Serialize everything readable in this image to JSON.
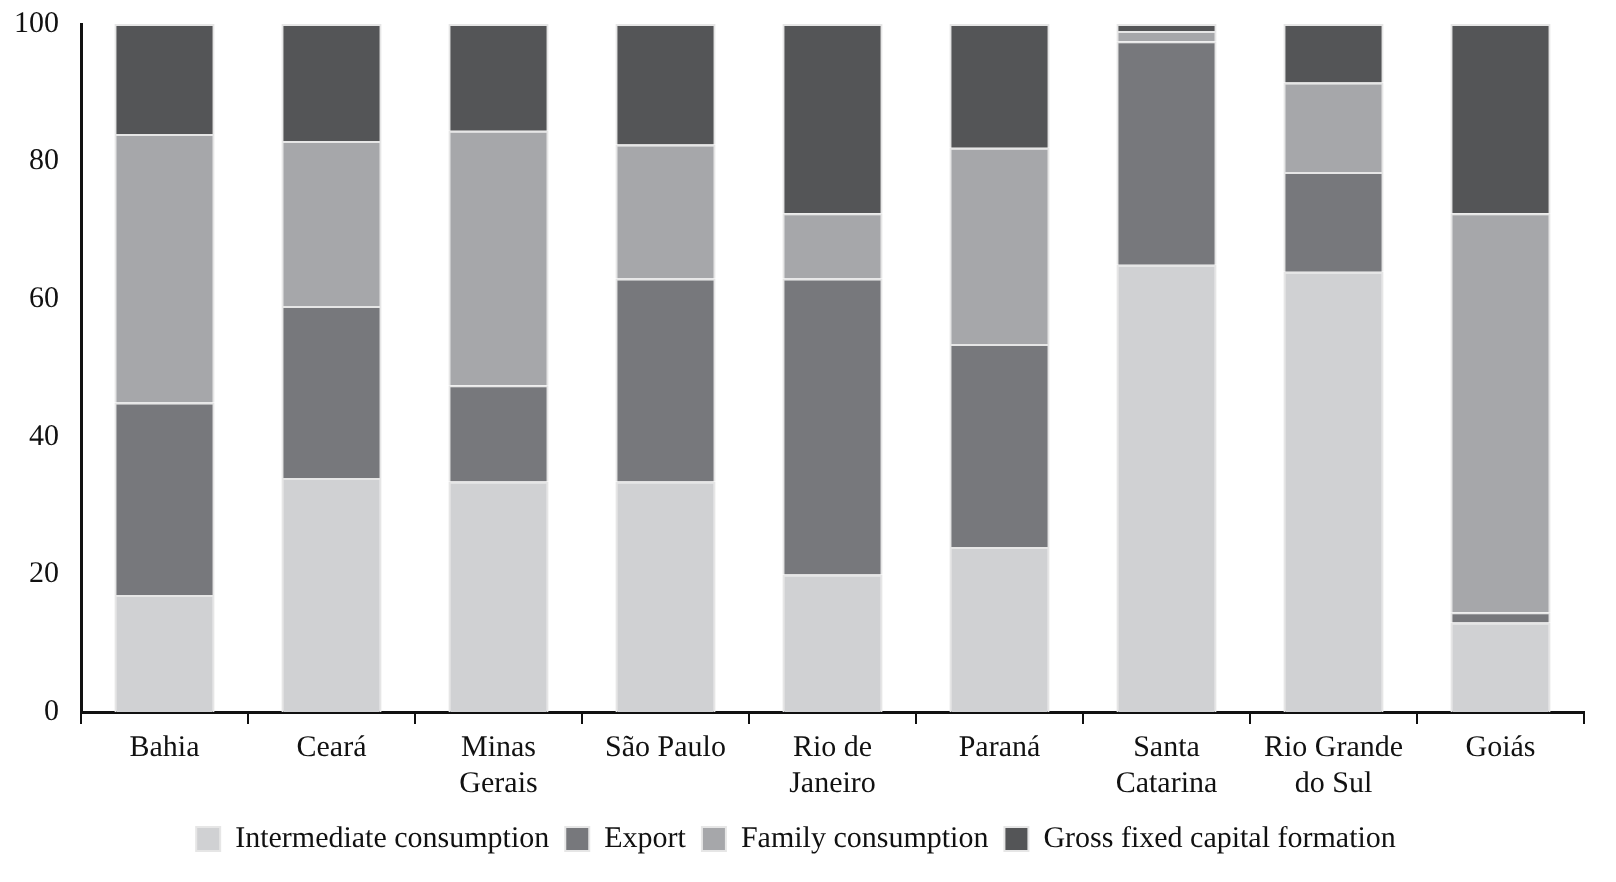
{
  "chart_data": {
    "type": "bar",
    "stacked": true,
    "categories": [
      "Bahia",
      "Ceará",
      "Minas Gerais",
      "São Paulo",
      "Rio de Janeiro",
      "Paraná",
      "Santa Catarina",
      "Rio Grande do Sul",
      "Goiás"
    ],
    "series": [
      {
        "name": "Intermediate consumption",
        "color": "#d0d1d3",
        "values": [
          17,
          34,
          33.5,
          33.5,
          20,
          24,
          65,
          64,
          13
        ]
      },
      {
        "name": "Export",
        "color": "#77787c",
        "values": [
          28,
          25,
          14,
          29.5,
          43,
          29.5,
          32.5,
          14.5,
          1.5
        ]
      },
      {
        "name": "Family consumption",
        "color": "#a6a7aa",
        "values": [
          39,
          24,
          37,
          19.5,
          9.5,
          28.5,
          1.5,
          13,
          58
        ]
      },
      {
        "name": "Gross fixed capital formation",
        "color": "#545557",
        "values": [
          16,
          17,
          15.5,
          17.5,
          27.5,
          18,
          1,
          8.5,
          27.5
        ]
      }
    ],
    "ylim": [
      0,
      100
    ],
    "yticks": [
      0,
      20,
      40,
      60,
      80,
      100
    ],
    "grid": false,
    "legend": "bottom"
  }
}
